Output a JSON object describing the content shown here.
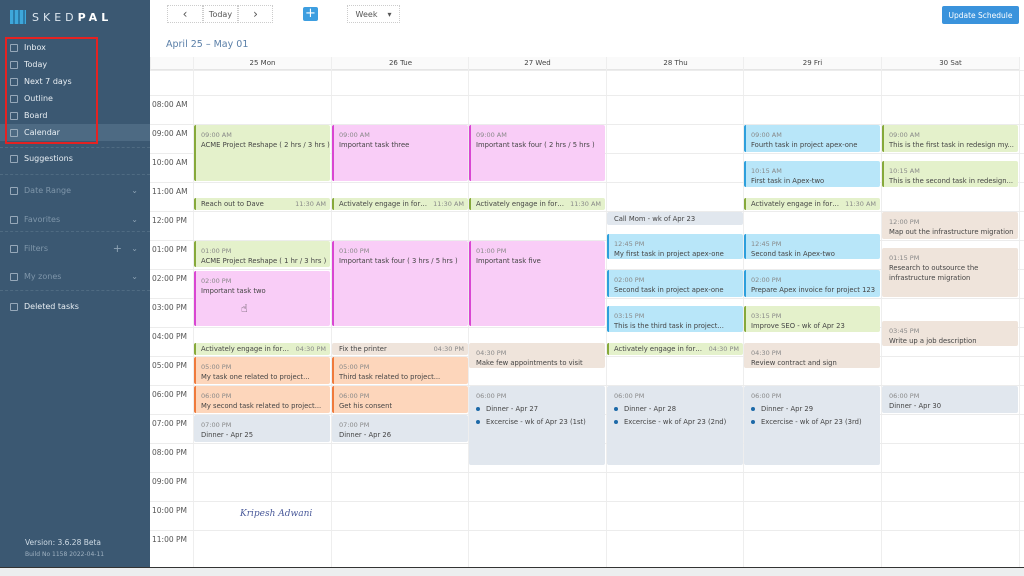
{
  "app": {
    "brand_light": "SKED",
    "brand_bold": "PAL"
  },
  "sidebar": {
    "items": [
      {
        "label": "Inbox",
        "icon": "inbox-icon"
      },
      {
        "label": "Today",
        "icon": "today-icon"
      },
      {
        "label": "Next 7 days",
        "icon": "next-7-days-icon"
      },
      {
        "label": "Outline",
        "icon": "outline-icon"
      },
      {
        "label": "Board",
        "icon": "board-icon"
      },
      {
        "label": "Calendar",
        "icon": "calendar-icon",
        "active": true
      }
    ],
    "suggestions": "Suggestions",
    "date_range": "Date Range",
    "favorites": "Favorites",
    "filters": "Filters",
    "my_zones": "My zones",
    "deleted": "Deleted tasks",
    "version": "Version: 3.6.28 Beta",
    "build": "Build No 1158 2022-04-11"
  },
  "toolbar": {
    "prev": "‹",
    "today": "Today",
    "next": "›",
    "add": "+",
    "view": "Week",
    "view_arrow": "▾",
    "update": "Update Schedule"
  },
  "range": "April 25 – May 01",
  "days": [
    "25 Mon",
    "26 Tue",
    "27 Wed",
    "28 Thu",
    "29 Fri",
    "30 Sat"
  ],
  "hours": [
    "08:00 AM",
    "09:00 AM",
    "10:00 AM",
    "11:00 AM",
    "12:00 PM",
    "01:00 PM",
    "02:00 PM",
    "03:00 PM",
    "04:00 PM",
    "05:00 PM",
    "06:00 PM",
    "07:00 PM",
    "08:00 PM",
    "09:00 PM",
    "10:00 PM",
    "11:00 PM"
  ],
  "colors": {
    "green": [
      "#e4f1cb",
      "#86a93a"
    ],
    "pink": [
      "#f9cdf7",
      "#d946d2"
    ],
    "blue": [
      "#b8e6f9",
      "#2d9fdc"
    ],
    "orange": [
      "#fdd6bb",
      "#ef7a3c"
    ],
    "beige": [
      "#efe4db",
      "#efe4db"
    ],
    "gray": [
      "#e1e7ee",
      "#e1e7ee"
    ]
  },
  "events": [
    {
      "day": 0,
      "start": 9,
      "end": 11,
      "time": "09:00 AM",
      "title": "ACME Project Reshape ( 2 hrs / 3 hrs )",
      "color": "green"
    },
    {
      "day": 0,
      "start": 11.5,
      "end": 12,
      "time": "11:30 AM",
      "title": "Reach out to Dave",
      "color": "green",
      "compact": true
    },
    {
      "day": 0,
      "start": 13,
      "end": 13.95,
      "time": "01:00 PM",
      "title": "ACME Project Reshape ( 1 hr / 3 hrs )",
      "color": "green"
    },
    {
      "day": 0,
      "start": 14.05,
      "end": 16,
      "time": "02:00 PM",
      "title": "Important task two",
      "color": "pink"
    },
    {
      "day": 0,
      "start": 16.5,
      "end": 17,
      "time": "04:30 PM",
      "title": "Activately engage in foru...",
      "color": "green",
      "compact": true
    },
    {
      "day": 0,
      "start": 17,
      "end": 18,
      "time": "05:00 PM",
      "title": "My task one related to project...",
      "color": "orange"
    },
    {
      "day": 0,
      "start": 18,
      "end": 19,
      "time": "06:00 PM",
      "title": "My second task related to project...",
      "color": "orange"
    },
    {
      "day": 0,
      "start": 19,
      "end": 20,
      "time": "07:00 PM",
      "title": "Dinner - Apr 25",
      "color": "gray"
    },
    {
      "day": 1,
      "start": 9,
      "end": 11,
      "time": "09:00 AM",
      "title": "Important task three",
      "color": "pink"
    },
    {
      "day": 1,
      "start": 11.5,
      "end": 12,
      "time": "11:30 AM",
      "title": "Activately engage in foru...",
      "color": "green",
      "compact": true
    },
    {
      "day": 1,
      "start": 13,
      "end": 16,
      "time": "01:00 PM",
      "title": "Important task four ( 3 hrs / 5 hrs )",
      "color": "pink"
    },
    {
      "day": 1,
      "start": 16.5,
      "end": 17,
      "time": "04:30 PM",
      "title": "Fix the printer",
      "color": "beige",
      "compact": true
    },
    {
      "day": 1,
      "start": 17,
      "end": 18,
      "time": "05:00 PM",
      "title": "Third task related to project...",
      "color": "orange"
    },
    {
      "day": 1,
      "start": 18,
      "end": 19,
      "time": "06:00 PM",
      "title": "Get his consent",
      "color": "orange"
    },
    {
      "day": 1,
      "start": 19,
      "end": 20,
      "time": "07:00 PM",
      "title": "Dinner - Apr 26",
      "color": "gray"
    },
    {
      "day": 2,
      "start": 9,
      "end": 11,
      "time": "09:00 AM",
      "title": "Important task four ( 2 hrs / 5 hrs )",
      "color": "pink"
    },
    {
      "day": 2,
      "start": 11.5,
      "end": 12,
      "time": "11:30 AM",
      "title": "Activately engage in foru...",
      "color": "green",
      "compact": true
    },
    {
      "day": 2,
      "start": 13,
      "end": 16,
      "time": "01:00 PM",
      "title": "Important task five",
      "color": "pink"
    },
    {
      "day": 2,
      "start": 16.5,
      "end": 17.45,
      "time": "04:30 PM",
      "title": "Make few appointments to visit",
      "color": "beige"
    },
    {
      "day": 2,
      "start": 18,
      "end": 20.8,
      "time": "06:00 PM",
      "items": [
        "Dinner - Apr 27",
        "Excercise - wk of Apr 23 (1st)"
      ],
      "color": "gray"
    },
    {
      "day": 3,
      "start": 12,
      "end": 12.5,
      "title": "Call Mom - wk of Apr 23",
      "color": "gray",
      "compact": true
    },
    {
      "day": 3,
      "start": 12.75,
      "end": 13.7,
      "time": "12:45 PM",
      "title": "My first task in project apex-one",
      "color": "blue"
    },
    {
      "day": 3,
      "start": 14,
      "end": 15,
      "time": "02:00 PM",
      "title": "Second task in project apex-one",
      "color": "blue"
    },
    {
      "day": 3,
      "start": 15.25,
      "end": 16.2,
      "time": "03:15 PM",
      "title": "This is the third task in project...",
      "color": "blue"
    },
    {
      "day": 3,
      "start": 16.5,
      "end": 17,
      "time": "04:30 PM",
      "title": "Activately engage in foru...",
      "color": "green",
      "compact": true
    },
    {
      "day": 3,
      "start": 18,
      "end": 20.8,
      "time": "06:00 PM",
      "items": [
        "Dinner - Apr 28",
        "Excercise - wk of Apr 23 (2nd)"
      ],
      "color": "gray"
    },
    {
      "day": 4,
      "start": 9,
      "end": 10,
      "time": "09:00 AM",
      "title": "Fourth task in project apex-one",
      "color": "blue"
    },
    {
      "day": 4,
      "start": 10.25,
      "end": 11.2,
      "time": "10:15 AM",
      "title": "First task in Apex-two",
      "color": "blue"
    },
    {
      "day": 4,
      "start": 11.5,
      "end": 12,
      "time": "11:30 AM",
      "title": "Activately engage in foru...",
      "color": "green",
      "compact": true
    },
    {
      "day": 4,
      "start": 12.75,
      "end": 13.7,
      "time": "12:45 PM",
      "title": "Second task in Apex-two",
      "color": "blue"
    },
    {
      "day": 4,
      "start": 14,
      "end": 15,
      "time": "02:00 PM",
      "title": "Prepare Apex invoice for project 123",
      "color": "blue"
    },
    {
      "day": 4,
      "start": 15.25,
      "end": 16.2,
      "time": "03:15 PM",
      "title": "Improve SEO - wk of Apr 23",
      "color": "green"
    },
    {
      "day": 4,
      "start": 16.5,
      "end": 17.45,
      "time": "04:30 PM",
      "title": "Review contract and sign",
      "color": "beige"
    },
    {
      "day": 4,
      "start": 18,
      "end": 20.8,
      "time": "06:00 PM",
      "items": [
        "Dinner - Apr 29",
        "Excercise - wk of Apr 23 (3rd)"
      ],
      "color": "gray"
    },
    {
      "day": 5,
      "start": 9,
      "end": 10,
      "time": "09:00 AM",
      "title": "This is the first task in redesign my...",
      "color": "green"
    },
    {
      "day": 5,
      "start": 10.25,
      "end": 11.2,
      "time": "10:15 AM",
      "title": "This is the second task in redesign...",
      "color": "green"
    },
    {
      "day": 5,
      "start": 12,
      "end": 13,
      "time": "12:00 PM",
      "title": "Map out the infrastructure migration",
      "color": "beige"
    },
    {
      "day": 5,
      "start": 13.25,
      "end": 15,
      "time": "01:15 PM",
      "title": "Research to outsource the infrastructure migration",
      "color": "beige"
    },
    {
      "day": 5,
      "start": 15.75,
      "end": 16.7,
      "time": "03:45 PM",
      "title": "Write up a job description",
      "color": "beige"
    },
    {
      "day": 5,
      "start": 18,
      "end": 19,
      "time": "06:00 PM",
      "title": "Dinner - Apr 30",
      "color": "gray"
    }
  ],
  "signature": "Kripesh Adwani"
}
